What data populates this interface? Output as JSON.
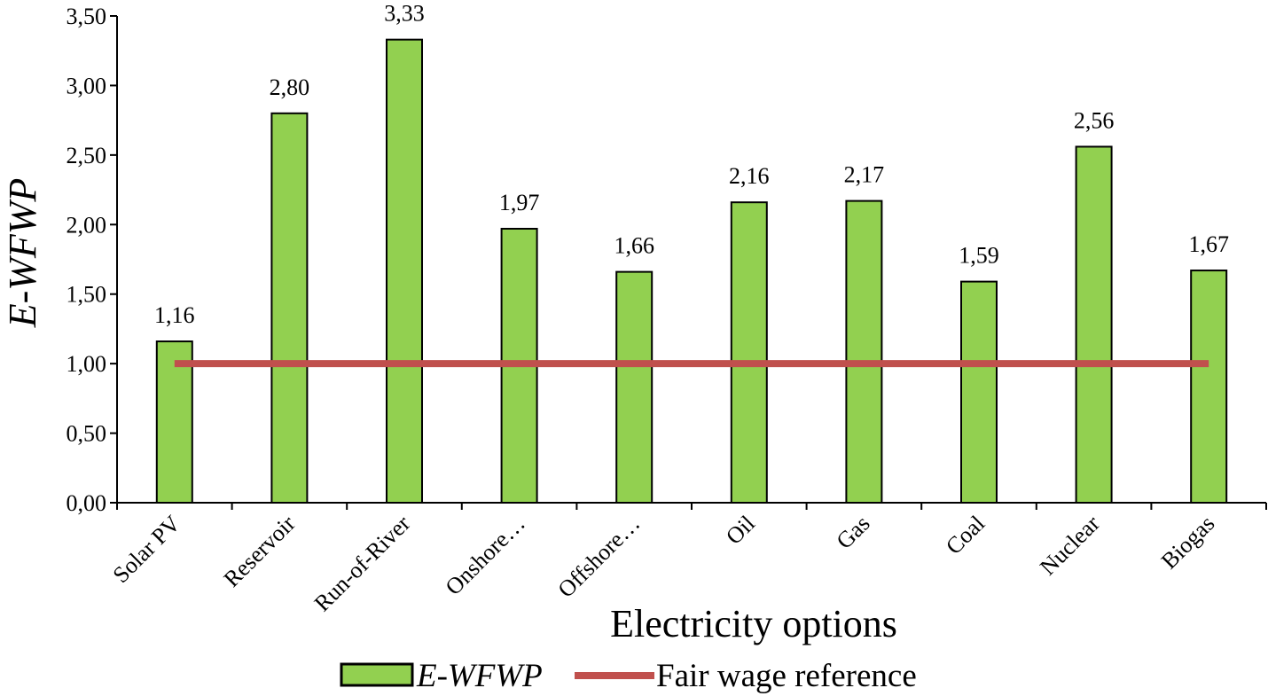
{
  "chart_data": {
    "type": "bar",
    "xlabel": "Electricity options",
    "ylabel": "E-WFWP",
    "ylim": [
      0,
      3.5
    ],
    "yticks": [
      "0,00",
      "0,50",
      "1,00",
      "1,50",
      "2,00",
      "2,50",
      "3,00",
      "3,50"
    ],
    "categories": [
      "Solar PV",
      "Reservoir",
      "Run-of-River",
      "Onshore…",
      "Offshore…",
      "Oil",
      "Gas",
      "Coal",
      "Nuclear",
      "Biogas"
    ],
    "series": [
      {
        "name": "E-WFWP",
        "type": "bar",
        "color": "#92d050",
        "values": [
          1.16,
          2.8,
          3.33,
          1.97,
          1.66,
          2.16,
          2.17,
          1.59,
          2.56,
          1.67
        ],
        "labels": [
          "1,16",
          "2,80",
          "3,33",
          "1,97",
          "1,66",
          "2,16",
          "2,17",
          "1,59",
          "2,56",
          "1,67"
        ]
      },
      {
        "name": "Fair wage reference",
        "type": "line",
        "color": "#c0504d",
        "values": [
          1.0,
          1.0,
          1.0,
          1.0,
          1.0,
          1.0,
          1.0,
          1.0,
          1.0,
          1.0
        ]
      }
    ],
    "grid": false,
    "legend": "bottom"
  }
}
